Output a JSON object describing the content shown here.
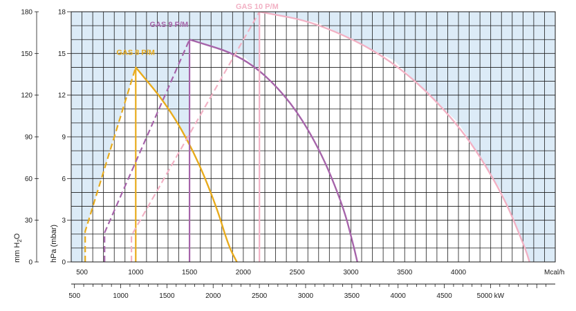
{
  "chart_data": {
    "type": "line",
    "title": "",
    "background_color": "#dcebf7",
    "grid": true,
    "x_axis": {
      "unit": "Mcal/h",
      "range": [
        400,
        4900
      ],
      "major_ticks": [
        500,
        1000,
        1500,
        2000,
        2500,
        3000,
        3500,
        4000
      ],
      "tick_labels": [
        "500",
        "1000",
        "1500",
        "2000",
        "2500",
        "3000",
        "3500",
        "4000"
      ]
    },
    "x_axis_secondary": {
      "unit": "kW",
      "range": [
        465,
        5700
      ],
      "ticks": [
        500,
        1000,
        1500,
        2000,
        2500,
        3000,
        3500,
        4000,
        4500,
        5000
      ],
      "tick_labels": [
        "500",
        "1000",
        "1500",
        "2000",
        "2500",
        "3000",
        "3500",
        "4000",
        "4500",
        "5000 kW"
      ]
    },
    "y_axis_right": {
      "label": "hPa (mbar)",
      "range": [
        0,
        18
      ],
      "ticks": [
        0,
        3,
        6,
        9,
        12,
        15,
        18
      ],
      "tick_labels": [
        "0",
        "3",
        "6",
        "9",
        "12",
        "15",
        "18"
      ]
    },
    "y_axis_left": {
      "label_prefix": "mm H",
      "label_sub": "2",
      "label_suffix": "O",
      "ticks": [
        0,
        30,
        60,
        90,
        120,
        150,
        180
      ],
      "tick_labels": [
        "0",
        "30",
        "60",
        "90",
        "120",
        "150",
        "180"
      ]
    },
    "series": [
      {
        "name": "GAS 8 P/M",
        "color": "#e8ab1c",
        "label_position": [
          820,
          14.9
        ],
        "dashed": [
          [
            530,
            0
          ],
          [
            530,
            2.2
          ],
          [
            1000,
            14
          ]
        ],
        "vertical": [
          [
            1000,
            0
          ],
          [
            1000,
            14
          ]
        ],
        "envelope": [
          [
            1000,
            14
          ],
          [
            1300,
            11.2
          ],
          [
            1550,
            7.8
          ],
          [
            1750,
            4
          ],
          [
            1860,
            1.2
          ],
          [
            1940,
            0
          ]
        ]
      },
      {
        "name": "GAS 9 P/M",
        "color": "#a664aa",
        "label_position": [
          1130,
          16.9
        ],
        "dashed": [
          [
            710,
            0
          ],
          [
            710,
            2.1
          ],
          [
            1500,
            16
          ]
        ],
        "vertical": [
          [
            1500,
            0
          ],
          [
            1500,
            16
          ]
        ],
        "envelope": [
          [
            1500,
            16
          ],
          [
            2000,
            14.8
          ],
          [
            2400,
            12
          ],
          [
            2700,
            8.3
          ],
          [
            2930,
            4
          ],
          [
            3030,
            1
          ],
          [
            3060,
            0
          ]
        ]
      },
      {
        "name": "GAS 10 P/M",
        "color": "#f2b1c4",
        "label_position": [
          1930,
          18.2
        ],
        "dashed": [
          [
            960,
            0
          ],
          [
            960,
            1.9
          ],
          [
            2150,
            18
          ]
        ],
        "vertical": [
          [
            2150,
            0
          ],
          [
            2150,
            18
          ]
        ],
        "envelope": [
          [
            2150,
            18
          ],
          [
            2700,
            17.2
          ],
          [
            3400,
            14.5
          ],
          [
            4000,
            10
          ],
          [
            4400,
            5.1
          ],
          [
            4620,
            1
          ],
          [
            4660,
            0
          ]
        ]
      }
    ]
  }
}
